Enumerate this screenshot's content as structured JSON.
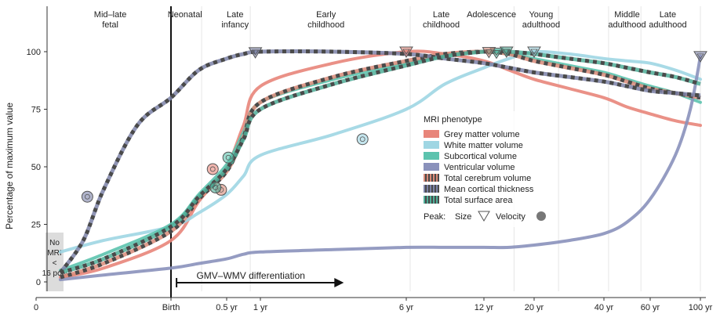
{
  "chart_data": {
    "type": "line",
    "ylabel": "Percentage of maximum value",
    "ylim": [
      0,
      100
    ],
    "y_ticks": [
      "0",
      "25",
      "50",
      "75",
      "100"
    ],
    "x_ticks": [
      {
        "label": "0",
        "t": 0
      },
      {
        "label": "Birth",
        "t": 1
      },
      {
        "label": "0.5 yr",
        "t": 2
      },
      {
        "label": "1 yr",
        "t": 3
      },
      {
        "label": "6 yr",
        "t": 4
      },
      {
        "label": "12 yr",
        "t": 5
      },
      {
        "label": "20 yr",
        "t": 6
      },
      {
        "label": "40 yr",
        "t": 7
      },
      {
        "label": "60 yr",
        "t": 8
      },
      {
        "label": "100 yr",
        "t": 9
      }
    ],
    "stages": [
      {
        "label": "Mid–late\nfetal",
        "t": 0.55
      },
      {
        "label": "Neonatal",
        "t": 1.25
      },
      {
        "label": "Late\ninfancy",
        "t": 2.25
      },
      {
        "label": "Early\nchildhood",
        "t": 3.45
      },
      {
        "label": "Late\nchildhood",
        "t": 4.45
      },
      {
        "label": "Adolescence",
        "t": 5.15
      },
      {
        "label": "Young\nadulthood",
        "t": 6.1
      },
      {
        "label": "Middle\nadulthood",
        "t": 7.5
      },
      {
        "label": "Late\nadulthood",
        "t": 8.35
      }
    ],
    "stage_boundaries": [
      1.55,
      2.7,
      4.05,
      5.6,
      6.35,
      7.1,
      7.8,
      9
    ],
    "no_mri_label": "No\nMRI\n<\n16 pcw",
    "annotation": "GMV–WMV differentiation",
    "annotation_range": [
      1.1,
      3.55
    ],
    "legend_title": "MRI phenotype",
    "peak_legend": {
      "label": "Peak:",
      "size_label": "Size",
      "velocity_label": "Velocity"
    },
    "series": [
      {
        "name": "Grey matter volume",
        "color": "#e8857a",
        "style": "solid",
        "x": [
          0.18,
          0.5,
          1.0,
          1.5,
          2.0,
          2.5,
          3.0,
          3.5,
          4.0,
          4.5,
          5.0,
          5.5,
          6.0,
          6.5,
          7.0,
          7.5,
          8.0,
          8.5,
          9.0
        ],
        "y": [
          2,
          6,
          18,
          35,
          50,
          68,
          85,
          95,
          100,
          99,
          96,
          92,
          88,
          84,
          80,
          76,
          73,
          70,
          68
        ],
        "peak_size_t": 4.0,
        "velocity_t": 1.75,
        "velocity_y": 49
      },
      {
        "name": "White matter volume",
        "color": "#9fd6e3",
        "style": "solid",
        "x": [
          0.18,
          0.5,
          1.0,
          1.5,
          2.0,
          2.5,
          3.0,
          3.5,
          4.0,
          4.5,
          5.0,
          5.5,
          6.0,
          6.5,
          7.0,
          7.5,
          8.0,
          8.5,
          9.0
        ],
        "y": [
          13,
          18,
          24,
          30,
          38,
          46,
          55,
          64,
          75,
          86,
          93,
          97,
          100,
          99,
          97,
          96,
          95,
          92,
          88
        ],
        "peak_size_t": 6.0,
        "velocity_t": 3.7,
        "velocity_y": 62
      },
      {
        "name": "Subcortical volume",
        "color": "#5cc3ae",
        "style": "solid",
        "x": [
          0.18,
          0.5,
          1.0,
          1.5,
          2.0,
          2.5,
          3.0,
          3.5,
          4.0,
          4.5,
          5.0,
          5.5,
          6.0,
          6.5,
          7.0,
          7.5,
          8.0,
          8.5,
          9.0
        ],
        "y": [
          5,
          12,
          25,
          38,
          51,
          65,
          78,
          88,
          95,
          98,
          100,
          99,
          97,
          94,
          91,
          88,
          85,
          82,
          78
        ],
        "peak_size_t": 5.25,
        "velocity_t": 2.05,
        "velocity_y": 54
      },
      {
        "name": "Ventricular volume",
        "color": "#8a91bb",
        "style": "solid",
        "x": [
          0.18,
          0.5,
          1.0,
          1.5,
          2.0,
          2.5,
          3.0,
          3.5,
          4.0,
          4.5,
          5.0,
          5.5,
          6.0,
          6.5,
          7.0,
          7.5,
          8.0,
          8.5,
          8.8,
          9.0
        ],
        "y": [
          1,
          3,
          6,
          8,
          10,
          12,
          13,
          14,
          15,
          15,
          15,
          15,
          16,
          18,
          21,
          26,
          36,
          55,
          75,
          98
        ],
        "peak_size_t": 9.0
      },
      {
        "name": "Total cerebrum volume",
        "color": "#d98a78",
        "style": "dashed",
        "x": [
          0.18,
          0.5,
          1.0,
          1.5,
          2.0,
          2.5,
          3.0,
          3.5,
          4.0,
          4.5,
          5.0,
          5.5,
          6.0,
          6.5,
          7.0,
          7.5,
          8.0,
          8.5,
          9.0
        ],
        "y": [
          2,
          8,
          22,
          36,
          48,
          63,
          78,
          89,
          96,
          99,
          100,
          99,
          96,
          93,
          90,
          87,
          84,
          82,
          80
        ],
        "peak_size_t": 5.1,
        "velocity_t": 1.9,
        "velocity_y": 40
      },
      {
        "name": "Mean cortical thickness",
        "color": "#7c82a8",
        "style": "dashed",
        "x": [
          0.18,
          0.35,
          0.5,
          0.75,
          1.0,
          1.5,
          2.0,
          2.5,
          3.0,
          3.5,
          4.0,
          4.5,
          5.0,
          5.5,
          6.0,
          6.5,
          7.0,
          7.5,
          8.0,
          8.5,
          9.0
        ],
        "y": [
          4,
          18,
          40,
          68,
          80,
          92,
          97,
          99,
          100,
          100,
          99,
          97,
          95,
          93,
          91,
          89,
          87,
          85,
          83,
          82,
          81
        ],
        "peak_size_t": 2.85,
        "velocity_t": 0.38,
        "velocity_y": 37
      },
      {
        "name": "Total surface area",
        "color": "#4fae98",
        "style": "dashed",
        "x": [
          0.18,
          0.5,
          1.0,
          1.5,
          2.0,
          2.5,
          3.0,
          3.5,
          4.0,
          4.5,
          5.0,
          5.5,
          6.0,
          6.5,
          7.0,
          7.5,
          8.0,
          8.5,
          9.0
        ],
        "y": [
          4,
          10,
          24,
          37,
          49,
          62,
          75,
          86,
          94,
          98,
          100,
          100,
          99,
          97,
          95,
          93,
          91,
          89,
          86
        ],
        "peak_size_t": 5.45,
        "velocity_t": 1.8,
        "velocity_y": 41
      }
    ]
  }
}
